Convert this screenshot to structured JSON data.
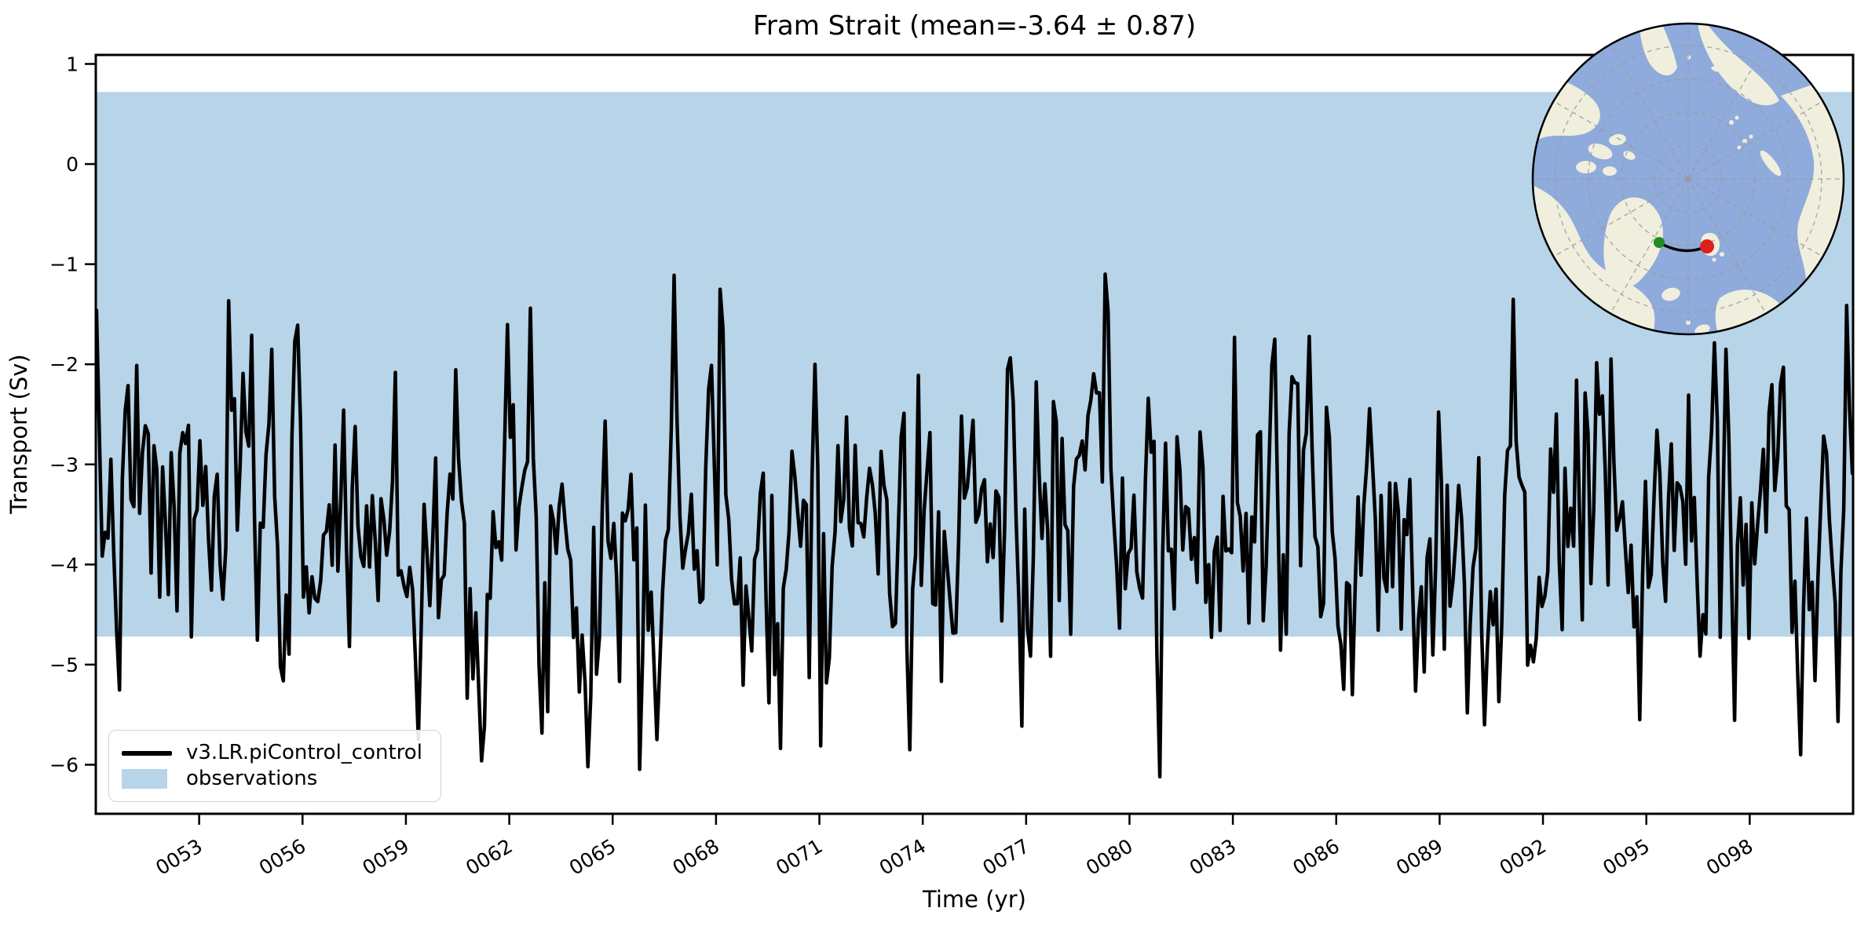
{
  "title": "Fram Strait (mean=-3.64 ± 0.87)",
  "chart_data": {
    "type": "line",
    "title": "Fram Strait (mean=-3.64 ± 0.87)",
    "xlabel": "Time (yr)",
    "ylabel": "Transport (Sv)",
    "xlim": [
      50.0,
      101.0
    ],
    "ylim": [
      -6.49,
      1.09
    ],
    "x_ticks": [
      53,
      56,
      59,
      62,
      65,
      68,
      71,
      74,
      77,
      80,
      83,
      86,
      89,
      92,
      95,
      98
    ],
    "x_tick_labels": [
      "0053",
      "0056",
      "0059",
      "0062",
      "0065",
      "0068",
      "0071",
      "0074",
      "0077",
      "0080",
      "0083",
      "0086",
      "0089",
      "0092",
      "0095",
      "0098"
    ],
    "y_ticks": [
      1,
      0,
      -1,
      -2,
      -3,
      -4,
      -5,
      -6
    ],
    "y_tick_labels": [
      "1",
      "0",
      "−1",
      "−2",
      "−3",
      "−4",
      "−5",
      "−6"
    ],
    "grid": false,
    "legend_position": "lower-left",
    "series": [
      {
        "name": "v3.LR.piControl_control",
        "color": "#000000",
        "line_width": 4.5,
        "mean": -3.64,
        "std": 0.87,
        "min": -6.1,
        "max": -1.1,
        "start_year": 50.02,
        "end_year": 100.98,
        "n_points": 612,
        "cadence": "monthly",
        "generator": {
          "seed": 7,
          "ar": 0.45
        },
        "anchors": [
          {
            "year": 55.1,
            "value": -1.85
          },
          {
            "year": 59.4,
            "value": -5.75
          },
          {
            "year": 64.3,
            "value": -6.02
          },
          {
            "year": 66.8,
            "value": -1.11
          },
          {
            "year": 70.9,
            "value": -2.0
          },
          {
            "year": 73.6,
            "value": -5.85
          },
          {
            "year": 80.9,
            "value": -6.12
          },
          {
            "year": 84.2,
            "value": -1.75
          },
          {
            "year": 86.5,
            "value": -5.3
          },
          {
            "year": 90.3,
            "value": -5.6
          },
          {
            "year": 94.8,
            "value": -5.55
          },
          {
            "year": 97.3,
            "value": -1.85
          },
          {
            "year": 99.5,
            "value": -5.9
          }
        ]
      }
    ],
    "observations_band": {
      "label": "observations",
      "color": "#b7d4e8",
      "top": 0.72,
      "bottom": -4.72
    }
  },
  "legend": {
    "items": [
      {
        "label": "v3.LR.piControl_control",
        "swatch": "line",
        "color": "#000000"
      },
      {
        "label": "observations",
        "swatch": "patch",
        "color": "#b7d4e8"
      }
    ]
  },
  "inset_map": {
    "description_label": "",
    "ocean_color": "#8fabdc",
    "land_color": "#f0eedd",
    "graticule_color": "#9a9a9a",
    "section": {
      "start_color": "#228b22",
      "end_color": "#e01f1f",
      "line_color": "#000000"
    }
  }
}
